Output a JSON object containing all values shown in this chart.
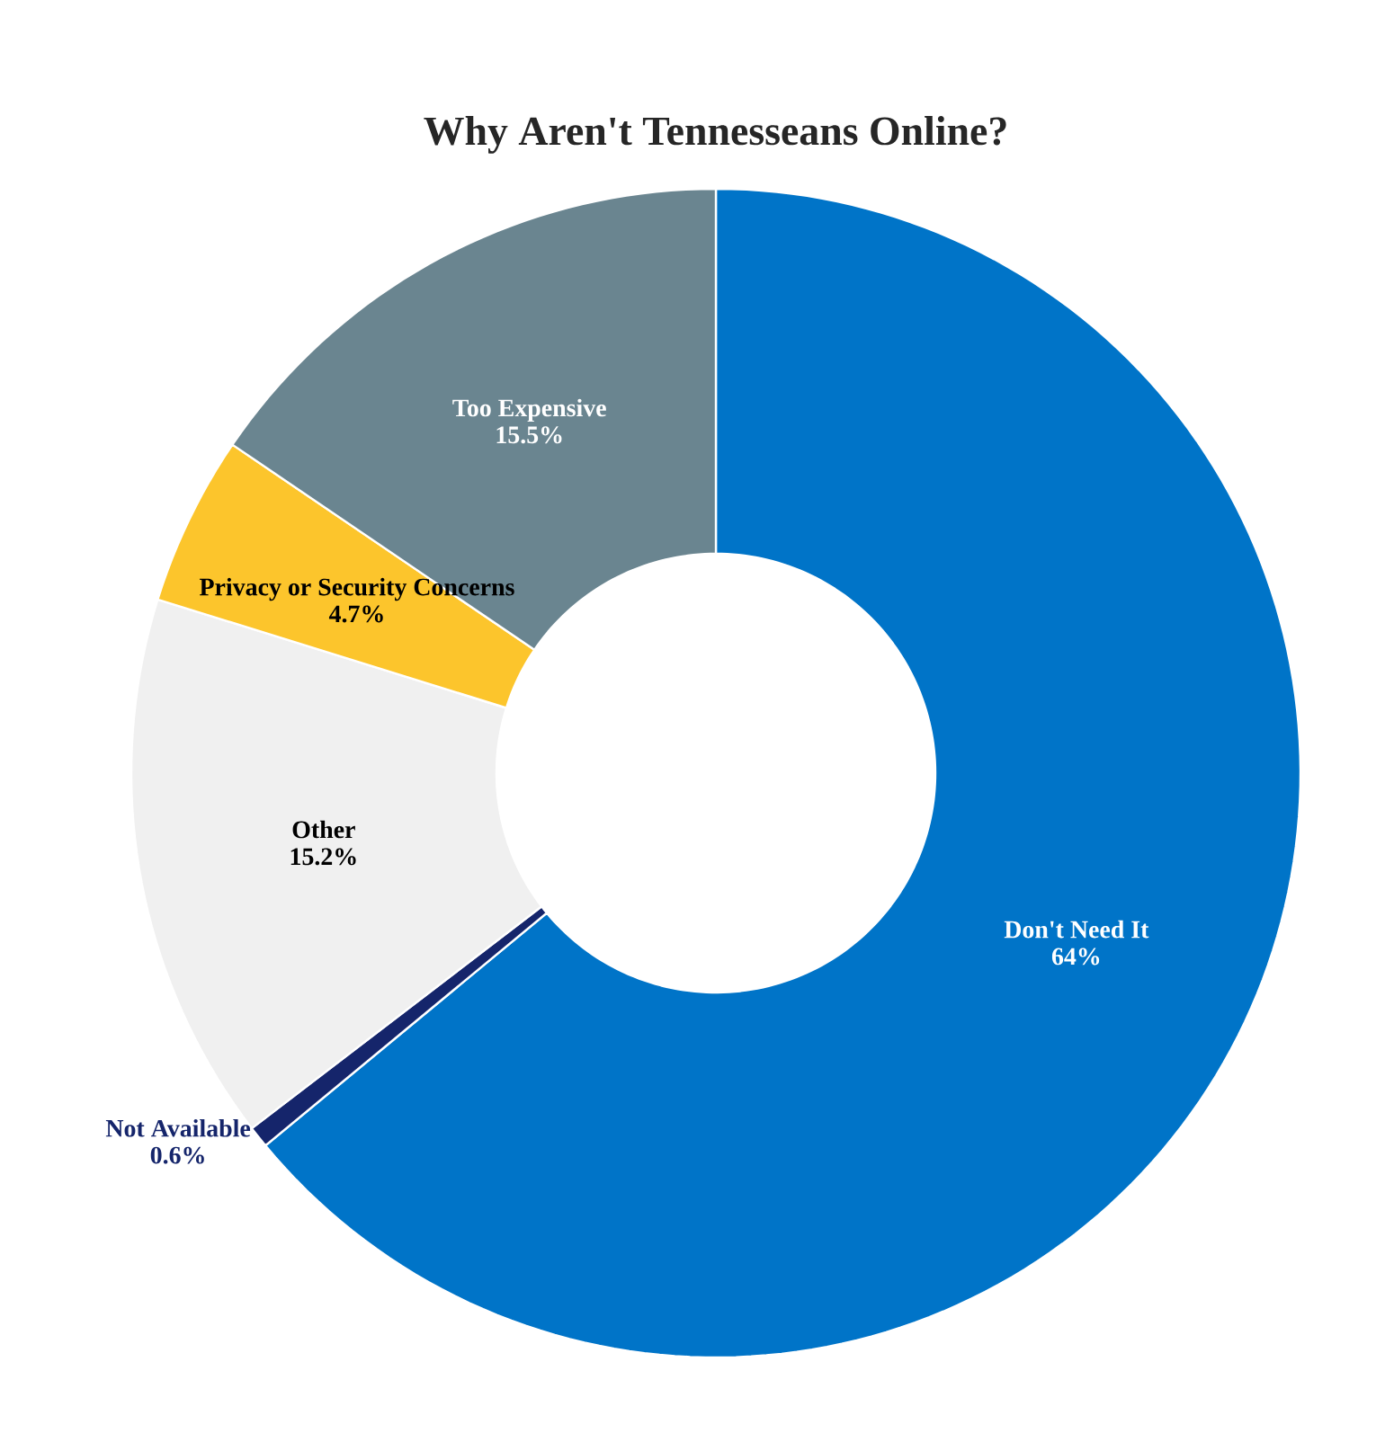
{
  "chart_data": {
    "type": "donut",
    "title": "Why Aren't Tennesseans Online?",
    "categories": [
      "Don't Need It",
      "Not Available",
      "Other",
      "Privacy or Security Concerns",
      "Too Expensive"
    ],
    "values": [
      64,
      0.6,
      15.2,
      4.7,
      15.5
    ],
    "value_labels": [
      "64%",
      "0.6%",
      "15.2%",
      "4.7%",
      "15.5%"
    ],
    "colors": [
      "#0074c8",
      "#15256b",
      "#f0f0f0",
      "#fcc52c",
      "#6a8590"
    ]
  }
}
